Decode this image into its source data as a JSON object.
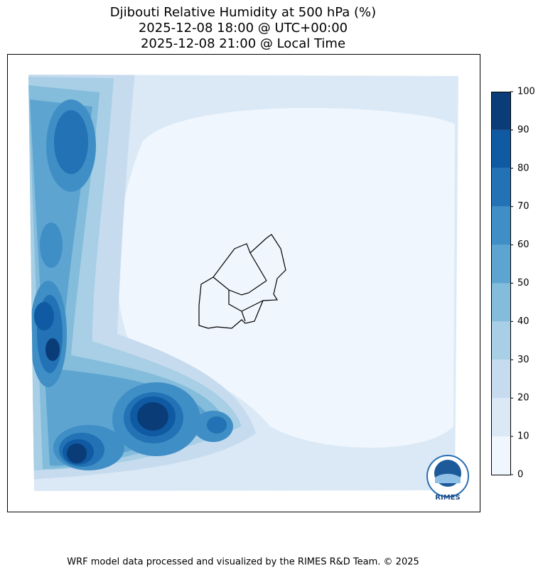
{
  "title": [
    "Djibouti Relative Humidity at 500 hPa (%)",
    "2025-12-08 18:00 @ UTC+00:00",
    "2025-12-08 21:00 @ Local Time"
  ],
  "colorbar": {
    "lim": [
      0,
      100
    ],
    "ticks": [
      0,
      10,
      20,
      30,
      40,
      50,
      60,
      70,
      80,
      90,
      100
    ],
    "colors": [
      "#eff6fd",
      "#dbe9f6",
      "#c7dbef",
      "#a8cfe5",
      "#84bcdb",
      "#5da4d1",
      "#3f8ec5",
      "#2272b5",
      "#0f5aa2",
      "#0a3c78"
    ]
  },
  "logo": "RIMES",
  "footer": "WRF model data processed and visualized by the RIMES R&D Team. © 2025"
}
